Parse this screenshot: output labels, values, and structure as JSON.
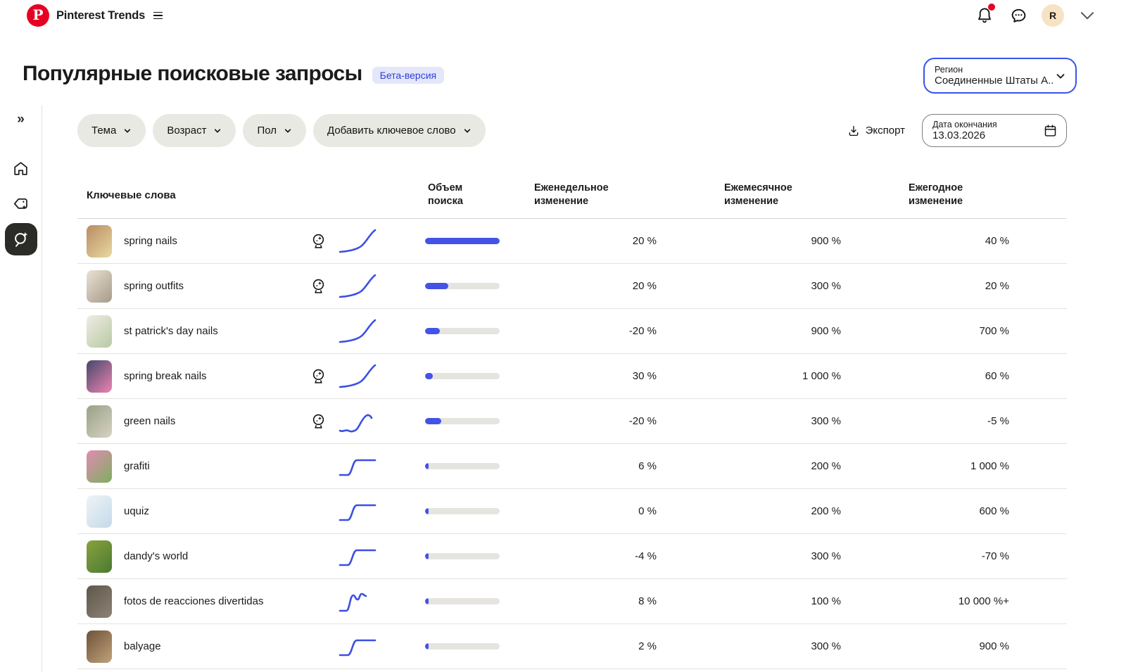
{
  "topbar": {
    "brand": "Pinterest Trends",
    "avatar_initial": "R",
    "icons": {
      "logo": "pinterest-p",
      "menu": "hamburger",
      "notifications": "bell-with-red-dot",
      "messages": "chat-bubble-ellipsis",
      "expand": "chevron-down"
    }
  },
  "page": {
    "title": "Популярные поисковые запросы",
    "beta_badge": "Бета-версия",
    "region": {
      "label": "Регион",
      "value": "Соединенные Штаты А..."
    }
  },
  "sidebar": {
    "items": [
      {
        "name": "expand-sidebar",
        "glyph": "»",
        "active": false
      },
      {
        "name": "home",
        "icon": "house-icon",
        "active": false
      },
      {
        "name": "trending-badge",
        "icon": "tag-star-icon",
        "active": false
      },
      {
        "name": "search-insights",
        "icon": "search-sparkle-icon",
        "active": true
      }
    ]
  },
  "filters": {
    "topic_label": "Тема",
    "age_label": "Возраст",
    "gender_label": "Пол",
    "add_keyword_label": "Добавить ключевое слово"
  },
  "actions": {
    "export_label": "Экспорт",
    "end_date": {
      "label": "Дата окончания",
      "value": "13.03.2026"
    }
  },
  "table": {
    "columns": {
      "keyword": "Ключевые слова",
      "volume": "Объем поиска",
      "weekly": "Еженедельное изменение",
      "monthly": "Ежемесячное изменение",
      "yearly": "Ежегодное изменение"
    },
    "rows": [
      {
        "keyword": "spring nails",
        "predicted": true,
        "spark": "rise",
        "volume_pct": 100,
        "weekly": "20 %",
        "monthly": "900 %",
        "yearly": "40 %",
        "thumb": [
          "#b98b62",
          "#e9d9a1"
        ]
      },
      {
        "keyword": "spring outfits",
        "predicted": true,
        "spark": "rise",
        "volume_pct": 31,
        "weekly": "20 %",
        "monthly": "300 %",
        "yearly": "20 %",
        "thumb": [
          "#e9e2d6",
          "#a79a87"
        ]
      },
      {
        "keyword": "st patrick's day nails",
        "predicted": false,
        "spark": "rise",
        "volume_pct": 20,
        "weekly": "-20 %",
        "monthly": "900 %",
        "yearly": "700 %",
        "thumb": [
          "#efece4",
          "#b8c9a4"
        ]
      },
      {
        "keyword": "spring break nails",
        "predicted": true,
        "spark": "rise",
        "volume_pct": 10,
        "weekly": "30 %",
        "monthly": "1 000 %",
        "yearly": "60 %",
        "thumb": [
          "#44496b",
          "#ef83b1"
        ]
      },
      {
        "keyword": "green nails",
        "predicted": true,
        "spark": "wavy-rise",
        "volume_pct": 22,
        "weekly": "-20 %",
        "monthly": "300 %",
        "yearly": "-5 %",
        "thumb": [
          "#97a184",
          "#d8d2c6"
        ]
      },
      {
        "keyword": "grafiti",
        "predicted": false,
        "spark": "step",
        "volume_pct": 5,
        "weekly": "6 %",
        "monthly": "200 %",
        "yearly": "1 000 %",
        "thumb": [
          "#e08bb4",
          "#7fae5e"
        ]
      },
      {
        "keyword": "uquiz",
        "predicted": false,
        "spark": "step",
        "volume_pct": 5,
        "weekly": "0 %",
        "monthly": "200 %",
        "yearly": "600 %",
        "thumb": [
          "#eef4f8",
          "#c5d9e8"
        ]
      },
      {
        "keyword": "dandy's world",
        "predicted": false,
        "spark": "step",
        "volume_pct": 5,
        "weekly": "-4 %",
        "monthly": "300 %",
        "yearly": "-70 %",
        "thumb": [
          "#8aa23c",
          "#4a7a33"
        ]
      },
      {
        "keyword": "fotos de reacciones divertidas",
        "predicted": false,
        "spark": "step-notch",
        "volume_pct": 5,
        "weekly": "8 %",
        "monthly": "100 %",
        "yearly": "10 000 %+",
        "thumb": [
          "#5f574b",
          "#8d8275"
        ]
      },
      {
        "keyword": "balyage",
        "predicted": false,
        "spark": "step",
        "volume_pct": 5,
        "weekly": "2 %",
        "monthly": "300 %",
        "yearly": "900 %",
        "thumb": [
          "#6e5237",
          "#c0a27c"
        ]
      }
    ]
  },
  "colors": {
    "accent_blue": "#4353e6",
    "pinterest_red": "#e60023",
    "bar_track": "#e6e4df",
    "badge_bg": "#e4e6fa",
    "badge_text": "#2f41d9",
    "avatar_bg": "#f7e3c4"
  }
}
